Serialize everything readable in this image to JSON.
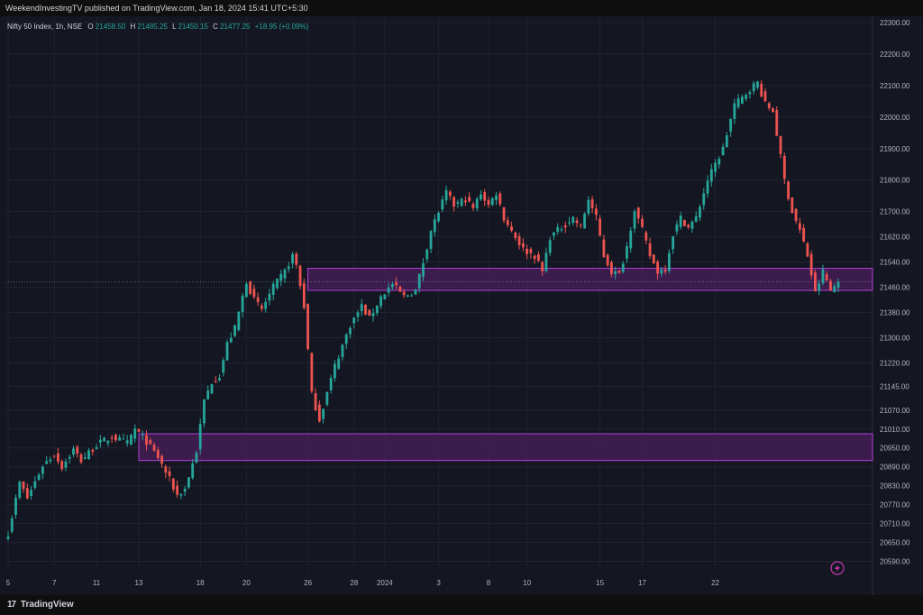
{
  "header": {
    "published_line": "WeekendInvestingTV published on TradingView.com, Jan 18, 2024 15:41 UTC+5:30"
  },
  "legend": {
    "symbol": "Nifty 50 Index, 1h, NSE",
    "open_label": "O",
    "open": "21458.50",
    "high_label": "H",
    "high": "21485.25",
    "low_label": "L",
    "low": "21450.15",
    "close_label": "C",
    "close": "21477.25",
    "change": "+18.95 (+0.09%)"
  },
  "footer": {
    "brand": "TradingView",
    "brand_mark": "17"
  },
  "colors": {
    "background": "#141722",
    "grid": "#1f2330",
    "up": "#26a69a",
    "down": "#ef5350",
    "zone_fill": "#4a1f5c",
    "zone_stroke": "#b23fd9",
    "text": "#b2b5be",
    "legend_value": "#26a69a"
  },
  "chart_data": {
    "type": "candlestick",
    "y_tick_labels": [
      "22300.00",
      "22200.00",
      "22100.00",
      "22000.00",
      "21900.00",
      "21800.00",
      "21700.00",
      "21620.00",
      "21540.00",
      "21460.00",
      "21380.00",
      "21300.00",
      "21220.00",
      "21145.00",
      "21070.00",
      "21010.00",
      "20950.00",
      "20890.00",
      "20830.00",
      "20770.00",
      "20710.00",
      "20650.00",
      "20590.00"
    ],
    "x_tick_labels": [
      "5",
      "7",
      "11",
      "13",
      "18",
      "20",
      "26",
      "28",
      "2024",
      "3",
      "8",
      "10",
      "15",
      "17",
      "22"
    ],
    "ylim": [
      20560,
      22320
    ],
    "zones": [
      {
        "top": 21520,
        "bottom": 21450,
        "start_label": "26"
      },
      {
        "top": 20995,
        "bottom": 20910,
        "start_label": "13"
      }
    ],
    "price_line": 21477.25,
    "anchors": [
      [
        0,
        20680
      ],
      [
        3,
        20840
      ],
      [
        5,
        20790
      ],
      [
        9,
        20895
      ],
      [
        12,
        20930
      ],
      [
        14,
        20890
      ],
      [
        17,
        20945
      ],
      [
        19,
        20910
      ],
      [
        23,
        20960
      ],
      [
        27,
        20985
      ],
      [
        31,
        20965
      ],
      [
        33,
        21010
      ],
      [
        36,
        20970
      ],
      [
        39,
        20920
      ],
      [
        42,
        20850
      ],
      [
        44,
        20800
      ],
      [
        46,
        20820
      ],
      [
        49,
        20940
      ],
      [
        51,
        21100
      ],
      [
        53,
        21160
      ],
      [
        55,
        21180
      ],
      [
        57,
        21280
      ],
      [
        59,
        21330
      ],
      [
        62,
        21480
      ],
      [
        64,
        21420
      ],
      [
        66,
        21390
      ],
      [
        69,
        21460
      ],
      [
        72,
        21510
      ],
      [
        74,
        21560
      ],
      [
        75,
        21530
      ],
      [
        77,
        21400
      ],
      [
        79,
        21120
      ],
      [
        81,
        21040
      ],
      [
        85,
        21210
      ],
      [
        89,
        21340
      ],
      [
        92,
        21400
      ],
      [
        94,
        21360
      ],
      [
        97,
        21430
      ],
      [
        100,
        21470
      ],
      [
        103,
        21430
      ],
      [
        106,
        21450
      ],
      [
        108,
        21540
      ],
      [
        110,
        21640
      ],
      [
        112,
        21700
      ],
      [
        114,
        21760
      ],
      [
        116,
        21720
      ],
      [
        119,
        21740
      ],
      [
        121,
        21710
      ],
      [
        123,
        21760
      ],
      [
        125,
        21720
      ],
      [
        127,
        21760
      ],
      [
        129,
        21680
      ],
      [
        131,
        21640
      ],
      [
        134,
        21580
      ],
      [
        137,
        21560
      ],
      [
        139,
        21510
      ],
      [
        141,
        21620
      ],
      [
        144,
        21650
      ],
      [
        147,
        21680
      ],
      [
        149,
        21650
      ],
      [
        151,
        21740
      ],
      [
        153,
        21680
      ],
      [
        155,
        21560
      ],
      [
        157,
        21510
      ],
      [
        159,
        21500
      ],
      [
        161,
        21590
      ],
      [
        163,
        21710
      ],
      [
        165,
        21640
      ],
      [
        167,
        21560
      ],
      [
        169,
        21510
      ],
      [
        171,
        21520
      ],
      [
        173,
        21630
      ],
      [
        175,
        21680
      ],
      [
        177,
        21650
      ],
      [
        179,
        21680
      ],
      [
        182,
        21800
      ],
      [
        184,
        21850
      ],
      [
        186,
        21900
      ],
      [
        189,
        22040
      ],
      [
        191,
        22060
      ],
      [
        193,
        22090
      ],
      [
        195,
        22110
      ],
      [
        197,
        22040
      ],
      [
        199,
        22020
      ],
      [
        202,
        21800
      ],
      [
        204,
        21700
      ],
      [
        206,
        21640
      ],
      [
        208,
        21560
      ],
      [
        210,
        21440
      ],
      [
        212,
        21510
      ],
      [
        214,
        21450
      ],
      [
        216,
        21477
      ]
    ]
  }
}
